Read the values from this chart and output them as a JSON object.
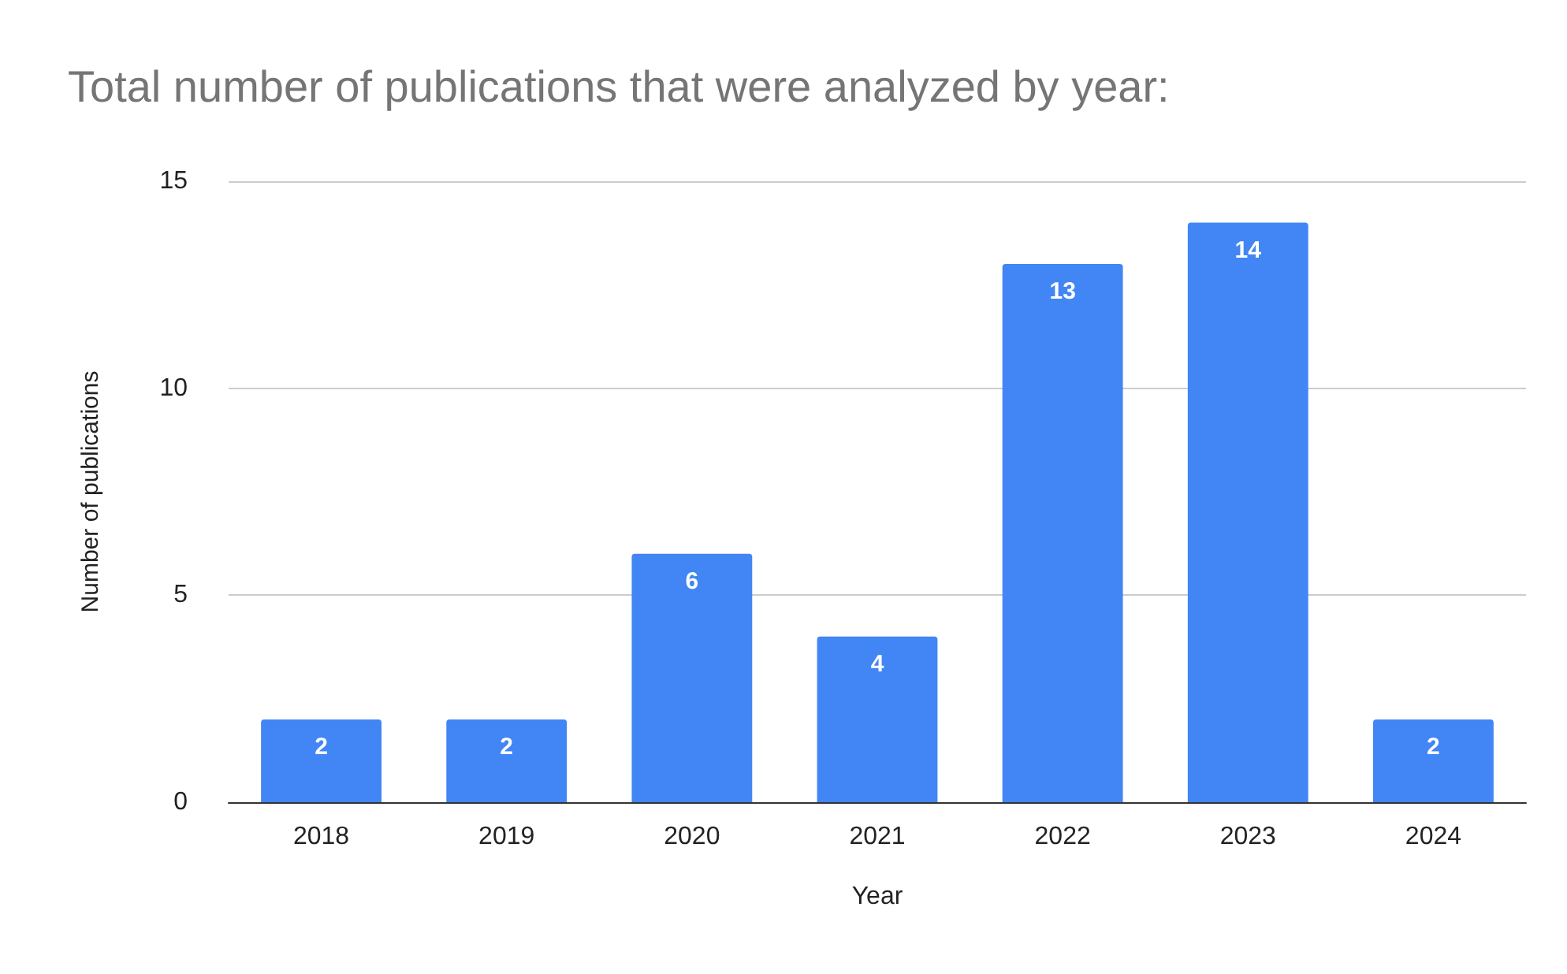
{
  "chart_data": {
    "type": "bar",
    "title": "Total number of publications that were analyzed by year:",
    "xlabel": "Year",
    "ylabel": "Number of publications",
    "categories": [
      "2018",
      "2019",
      "2020",
      "2021",
      "2022",
      "2023",
      "2024"
    ],
    "values": [
      2,
      2,
      6,
      4,
      13,
      14,
      2
    ],
    "color": "#4285f4",
    "ylim": [
      0,
      15
    ],
    "yticks": [
      0,
      5,
      10,
      15
    ],
    "grid": "y",
    "data_labels": true
  }
}
